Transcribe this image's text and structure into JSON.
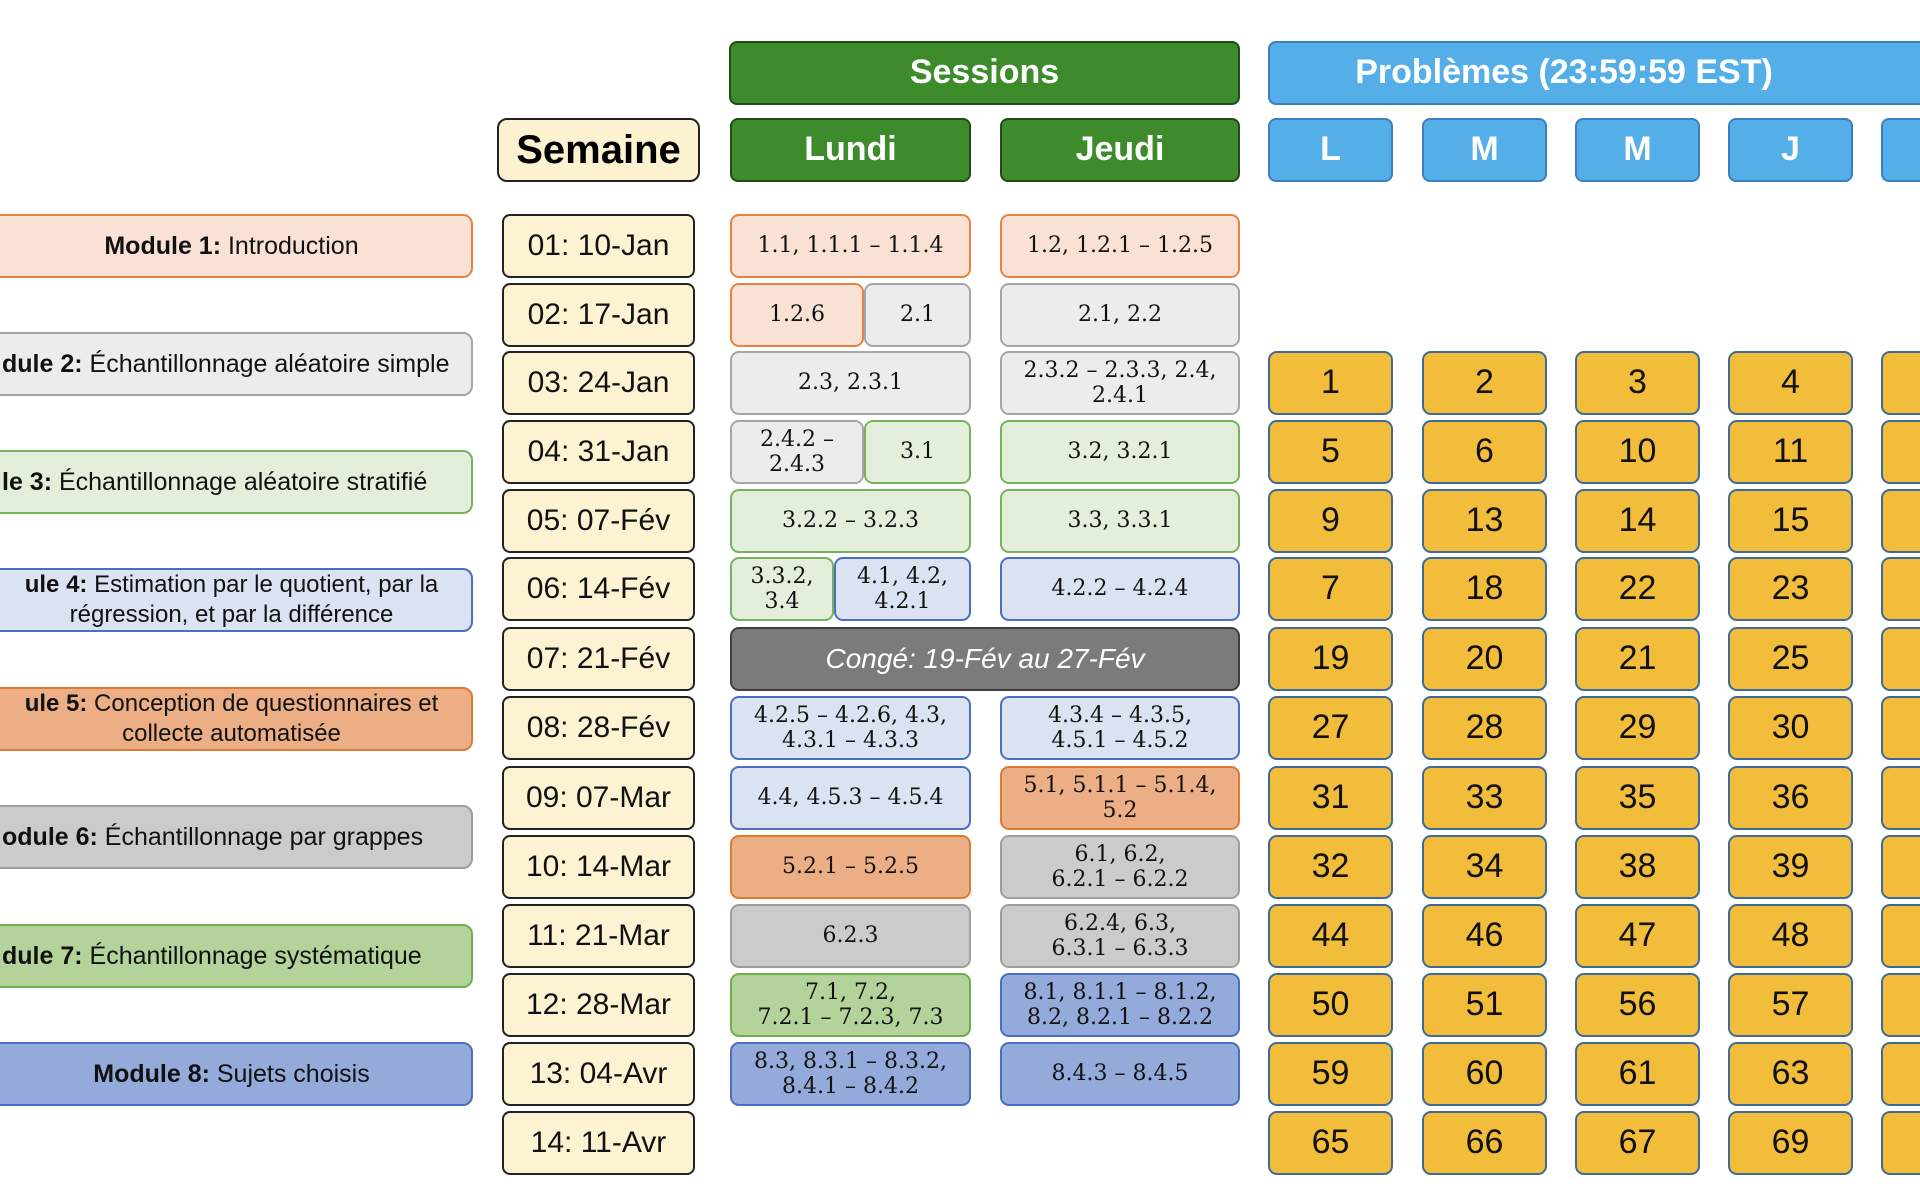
{
  "headers": {
    "semaine": "Semaine",
    "sessions": "Sessions",
    "lundi": "Lundi",
    "jeudi": "Jeudi",
    "problemes": "Problèmes (23:59:59 EST)",
    "days": [
      "L",
      "M",
      "M",
      "J",
      ""
    ]
  },
  "modules": [
    {
      "bold": "Module 1:",
      "text": " Introduction"
    },
    {
      "bold": "dule 2:",
      "text": " Échantillonnage aléatoire simple"
    },
    {
      "bold": "le 3:",
      "text": " Échantillonnage aléatoire stratifié"
    },
    {
      "bold": "ule 4:",
      "text": " Estimation par le quotient, par la",
      "text2": "régression, et par la différence"
    },
    {
      "bold": "ule 5:",
      "text": " Conception de questionnaires et",
      "text2": "collecte automatisée"
    },
    {
      "bold": "odule 6:",
      "text": " Échantillonnage par grappes"
    },
    {
      "bold": "dule 7:",
      "text": " Échantillonnage systématique"
    },
    {
      "bold": "Module 8:",
      "text": " Sujets choisis"
    }
  ],
  "weeks": [
    "01: 10-Jan",
    "02: 17-Jan",
    "03: 24-Jan",
    "04: 31-Jan",
    "05: 07-Fév",
    "06: 14-Fév",
    "07: 21-Fév",
    "08: 28-Fév",
    "09: 07-Mar",
    "10: 14-Mar",
    "11: 21-Mar",
    "12: 28-Mar",
    "13: 04-Avr",
    "14: 11-Avr"
  ],
  "lundi": {
    "w1": "1.1, 1.1.1 – 1.1.4",
    "w2a": "1.2.6",
    "w2b": "2.1",
    "w3": "2.3, 2.3.1",
    "w4a1": "2.4.2 –",
    "w4a2": "2.4.3",
    "w4b": "3.1",
    "w5": "3.2.2 – 3.2.3",
    "w6a1": "3.3.2,",
    "w6a2": "3.4",
    "w6b1": "4.1, 4.2,",
    "w6b2": "4.2.1",
    "w8_1": "4.2.5 – 4.2.6, 4.3,",
    "w8_2": "4.3.1 – 4.3.3",
    "w9": "4.4, 4.5.3 – 4.5.4",
    "w10": "5.2.1 – 5.2.5",
    "w11": "6.2.3",
    "w12_1": "7.1, 7.2,",
    "w12_2": "7.2.1 – 7.2.3, 7.3",
    "w13_1": "8.3, 8.3.1 – 8.3.2,",
    "w13_2": "8.4.1 – 8.4.2"
  },
  "jeudi": {
    "w1": "1.2, 1.2.1 – 1.2.5",
    "w2": "2.1, 2.2",
    "w3_1": "2.3.2 – 2.3.3, 2.4,",
    "w3_2": "2.4.1",
    "w4": "3.2, 3.2.1",
    "w5": "3.3, 3.3.1",
    "w6": "4.2.2 – 4.2.4",
    "w8_1": "4.3.4 – 4.3.5,",
    "w8_2": "4.5.1 – 4.5.2",
    "w9_1": "5.1, 5.1.1 – 5.1.4,",
    "w9_2": "5.2",
    "w10_1": "6.1, 6.2,",
    "w10_2": "6.2.1 – 6.2.2",
    "w11_1": "6.2.4, 6.3,",
    "w11_2": "6.3.1 – 6.3.3",
    "w12_1": "8.1, 8.1.1 – 8.1.2,",
    "w12_2": "8.2, 8.2.1 – 8.2.2",
    "w13": "8.4.3 – 8.4.5"
  },
  "conge": "Congé: 19-Fév au 27-Fév",
  "problems": [
    [
      "1",
      "2",
      "3",
      "4"
    ],
    [
      "5",
      "6",
      "10",
      "11"
    ],
    [
      "9",
      "13",
      "14",
      "15"
    ],
    [
      "7",
      "18",
      "22",
      "23"
    ],
    [
      "19",
      "20",
      "21",
      "25"
    ],
    [
      "27",
      "28",
      "29",
      "30"
    ],
    [
      "31",
      "33",
      "35",
      "36"
    ],
    [
      "32",
      "34",
      "38",
      "39"
    ],
    [
      "44",
      "46",
      "47",
      "48"
    ],
    [
      "50",
      "51",
      "56",
      "57"
    ],
    [
      "59",
      "60",
      "61",
      "63"
    ],
    [
      "65",
      "66",
      "67",
      "69"
    ]
  ]
}
